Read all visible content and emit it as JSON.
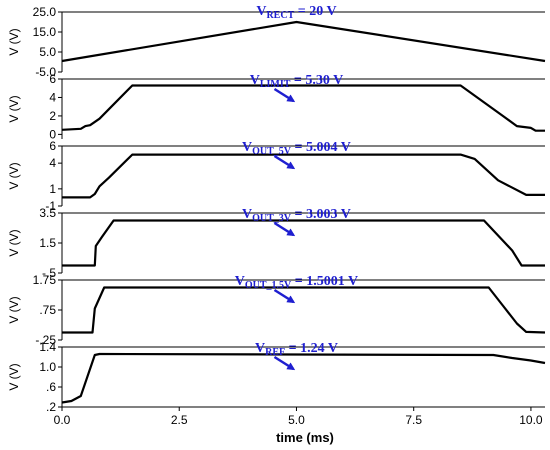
{
  "chart_data": {
    "type": "line",
    "xlabel": "time (ms)",
    "xlim": [
      0,
      10.3
    ],
    "x_ticks": [
      "0.0",
      "2.5",
      "5.0",
      "7.5",
      "10.0"
    ],
    "x_tick_values": [
      0,
      2.5,
      5.0,
      7.5,
      10.0
    ],
    "arrow_color": "#1f1fd0",
    "panels": [
      {
        "ylabel": "V (V)",
        "ylim": [
          -5,
          25
        ],
        "y_ticks": [
          "25.0",
          "15.0",
          "5.0",
          "-5.0"
        ],
        "y_tick_values": [
          25,
          15,
          5,
          -5
        ],
        "annotation": {
          "main": "V",
          "sub": "RECT",
          "rest": " = 20 V"
        },
        "series": [
          {
            "x": [
              0,
              5.0,
              10.3
            ],
            "y": [
              0.5,
              20,
              0.5
            ]
          }
        ]
      },
      {
        "ylabel": "V (V)",
        "ylim": [
          -0.5,
          6
        ],
        "y_ticks": [
          "6",
          "4",
          "2",
          "0"
        ],
        "y_tick_values": [
          6,
          4,
          2,
          0
        ],
        "annotation": {
          "main": "V",
          "sub": "LIMIT",
          "rest": " = 5.30 V"
        },
        "series": [
          {
            "x": [
              0,
              0.4,
              0.5,
              0.6,
              0.8,
              1.5,
              8.5,
              9.4,
              9.7,
              10.0,
              10.1,
              10.3
            ],
            "y": [
              0.5,
              0.6,
              0.9,
              1.0,
              1.7,
              5.3,
              5.3,
              2.0,
              0.9,
              0.7,
              0.4,
              0.4
            ]
          }
        ]
      },
      {
        "ylabel": "V (V)",
        "ylim": [
          -1,
          6
        ],
        "y_ticks": [
          "6",
          "4",
          "1",
          "-1"
        ],
        "y_tick_values": [
          6,
          4,
          1,
          -1
        ],
        "annotation": {
          "main": "V",
          "sub": "OUT_5V",
          "rest": " = 5.004 V"
        },
        "series": [
          {
            "x": [
              0,
              0.6,
              0.7,
              0.8,
              1.0,
              1.5,
              8.5,
              8.8,
              9.3,
              9.9,
              10.3
            ],
            "y": [
              0.0,
              0.0,
              0.4,
              1.3,
              2.3,
              5.0,
              5.0,
              4.5,
              2.0,
              0.3,
              0.3
            ]
          }
        ]
      },
      {
        "ylabel": "V (V)",
        "ylim": [
          -0.5,
          3.5
        ],
        "y_ticks": [
          "3.5",
          "1.5",
          "-.5"
        ],
        "y_tick_values": [
          3.5,
          1.5,
          -0.5
        ],
        "annotation": {
          "main": "V",
          "sub": "OUT_3V",
          "rest": " = 3.003 V"
        },
        "series": [
          {
            "x": [
              0,
              0.7,
              0.72,
              0.85,
              1.1,
              9.0,
              9.6,
              9.8,
              10.3
            ],
            "y": [
              0.0,
              0.0,
              1.3,
              1.9,
              3.0,
              3.0,
              1.0,
              0.0,
              0.0
            ]
          }
        ]
      },
      {
        "ylabel": "V (V)",
        "ylim": [
          -0.25,
          1.75
        ],
        "y_ticks": [
          "1.75",
          ".75",
          "-.25"
        ],
        "y_tick_values": [
          1.75,
          0.75,
          -0.25
        ],
        "annotation": {
          "main": "V",
          "sub": "OUT_1.5V",
          "rest": " = 1.5001 V"
        },
        "series": [
          {
            "x": [
              0,
              0.65,
              0.7,
              0.9,
              9.1,
              9.4,
              9.7,
              9.9,
              10.3
            ],
            "y": [
              0.0,
              0.0,
              0.8,
              1.5,
              1.5,
              0.9,
              0.3,
              0.02,
              0.0
            ]
          }
        ]
      },
      {
        "ylabel": "V (V)",
        "ylim": [
          0.2,
          1.4
        ],
        "y_ticks": [
          "1.4",
          "1.0",
          ".6",
          ".2"
        ],
        "y_tick_values": [
          1.4,
          1.0,
          0.6,
          0.2
        ],
        "annotation": {
          "main": "V",
          "sub": "REF",
          "rest": " = 1.24 V"
        },
        "series": [
          {
            "x": [
              0,
              0.2,
              0.4,
              0.7,
              0.8,
              9.2,
              9.6,
              10.0,
              10.3
            ],
            "y": [
              0.29,
              0.32,
              0.42,
              1.24,
              1.26,
              1.24,
              1.18,
              1.13,
              1.08
            ]
          }
        ]
      }
    ]
  }
}
